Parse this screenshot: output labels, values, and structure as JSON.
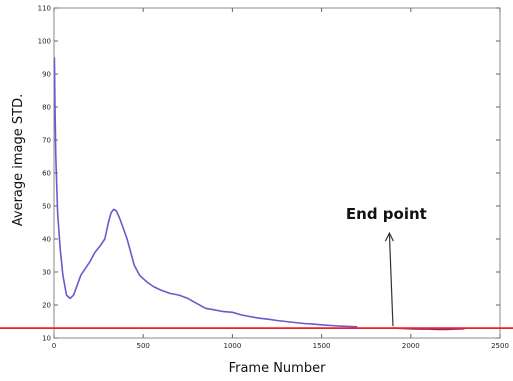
{
  "chart_data": {
    "type": "line",
    "title": "",
    "xlabel": "Frame Number",
    "ylabel": "Average image STD.",
    "xlim": [
      0,
      2500
    ],
    "ylim": [
      10,
      110
    ],
    "xticks": [
      0,
      500,
      1000,
      1500,
      2000,
      2500
    ],
    "yticks": [
      10,
      20,
      30,
      40,
      50,
      60,
      70,
      80,
      90,
      100,
      110
    ],
    "grid": false,
    "series": [
      {
        "color": "#6a5acd",
        "x": [
          2,
          5,
          10,
          20,
          35,
          50,
          70,
          90,
          110,
          130,
          150,
          175,
          200,
          230,
          260,
          285,
          305,
          320,
          335,
          350,
          370,
          390,
          410,
          430,
          450,
          480,
          520,
          560,
          600,
          650,
          700,
          750,
          800,
          850,
          900,
          950,
          1000,
          1050,
          1100,
          1150,
          1200,
          1250,
          1300,
          1350,
          1400,
          1450,
          1500,
          1550,
          1600,
          1650,
          1700
        ],
        "y": [
          95,
          82,
          65,
          48,
          37,
          29,
          23,
          22,
          23,
          26,
          29,
          31,
          33,
          36,
          38,
          40,
          45,
          48,
          49,
          48.5,
          46,
          43,
          40,
          36,
          32,
          29,
          27,
          25.5,
          24.5,
          23.5,
          23,
          22,
          20.5,
          19,
          18.5,
          18,
          17.8,
          17,
          16.5,
          16,
          15.7,
          15.3,
          15,
          14.7,
          14.4,
          14.2,
          14,
          13.8,
          13.6,
          13.5,
          13.4
        ]
      },
      {
        "color": "#8a2a6a",
        "x": [
          1900,
          1950,
          2000,
          2050,
          2100,
          2150,
          2200,
          2250,
          2300
        ],
        "y": [
          13,
          12.9,
          12.8,
          12.7,
          12.7,
          12.6,
          12.6,
          12.7,
          12.8
        ]
      }
    ],
    "threshold": {
      "y": 13,
      "color": "#e8222a"
    },
    "annotation": {
      "text": "End point",
      "x": 1900,
      "y": 13,
      "text_x": 1880,
      "text_y": 43
    },
    "colors": {
      "axes": "#444444",
      "frame": "#888888"
    }
  }
}
